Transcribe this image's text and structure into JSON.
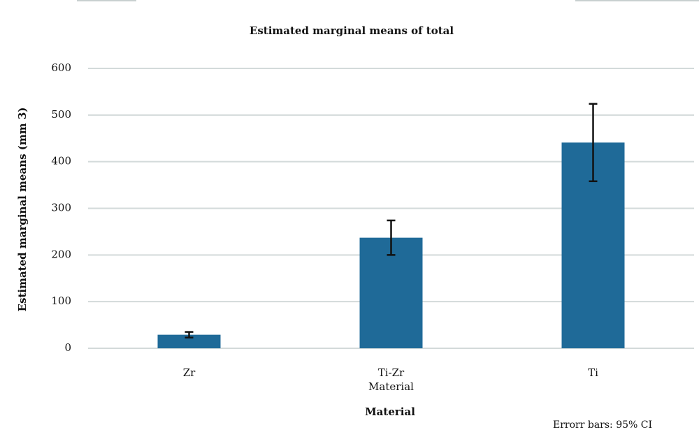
{
  "chart_data": {
    "type": "bar",
    "title": "Estimated marginal means of total",
    "x_label": "Material",
    "y_label": "Estimated marginal means (mm 3)",
    "categories": [
      "Zr",
      "Ti-Zr",
      "Ti"
    ],
    "category_caption": "Material",
    "values": [
      29,
      237,
      441
    ],
    "errors": [
      6,
      37,
      83
    ],
    "color": "#1f6a98",
    "ylim": [
      0,
      600
    ],
    "yticks": [
      0,
      100,
      200,
      300,
      400,
      500,
      600
    ],
    "grid": true,
    "note": "Errorr bars: 95% CI"
  }
}
